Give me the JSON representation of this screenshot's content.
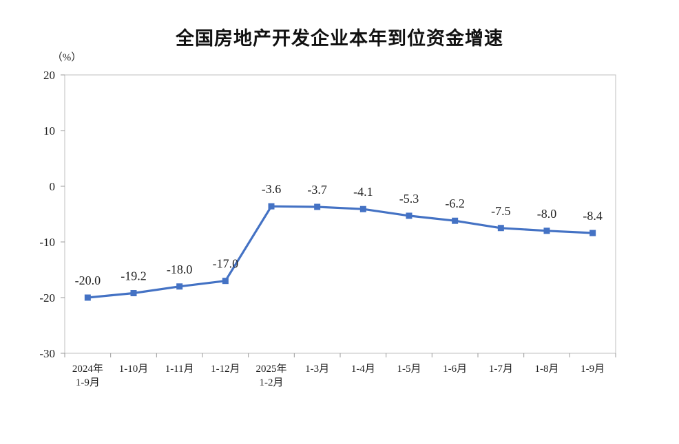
{
  "chart_data": {
    "type": "line",
    "title": "全国房地产开发企业本年到位资金增速",
    "ylabel": "（%）",
    "ylim": [
      -30,
      20
    ],
    "yticks": [
      20,
      10,
      0,
      -10,
      -20,
      -30
    ],
    "categories": [
      [
        "2024年",
        "1-9月"
      ],
      [
        "1-10月"
      ],
      [
        "1-11月"
      ],
      [
        "1-12月"
      ],
      [
        "2025年",
        "1-2月"
      ],
      [
        "1-3月"
      ],
      [
        "1-4月"
      ],
      [
        "1-5月"
      ],
      [
        "1-6月"
      ],
      [
        "1-7月"
      ],
      [
        "1-8月"
      ],
      [
        "1-9月"
      ]
    ],
    "values": [
      -20.0,
      -19.2,
      -18.0,
      -17.0,
      -3.6,
      -3.7,
      -4.1,
      -5.3,
      -6.2,
      -7.5,
      -8.0,
      -8.4
    ],
    "data_labels": [
      "-20.0",
      "-19.2",
      "-18.0",
      "-17.0",
      "-3.6",
      "-3.7",
      "-4.1",
      "-5.3",
      "-6.2",
      "-7.5",
      "-8.0",
      "-8.4"
    ],
    "line_color": "#4472c4",
    "grid": false,
    "legend": "none"
  }
}
